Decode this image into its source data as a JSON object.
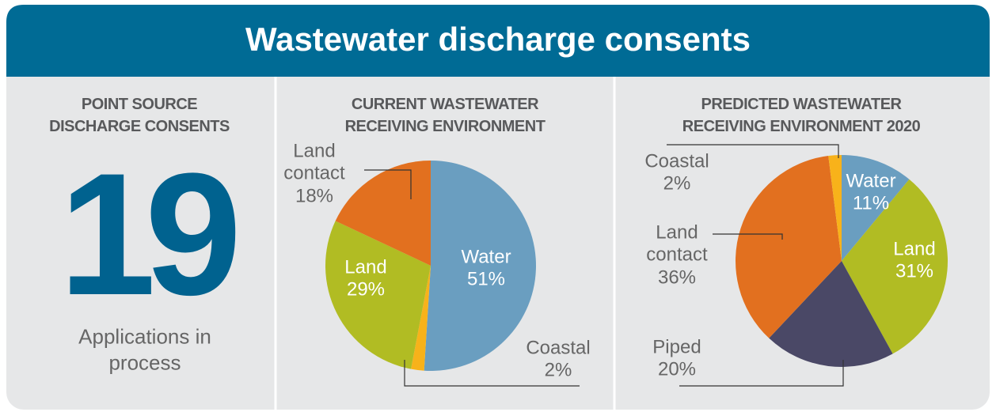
{
  "header": {
    "title": "Wastewater discharge consents"
  },
  "summary": {
    "title": [
      "POINT SOURCE",
      "DISCHARGE CONSENTS"
    ],
    "number": "19",
    "caption": "Applications in process"
  },
  "chart_data": [
    {
      "type": "pie",
      "title": [
        "CURRENT WASTEWATER",
        "RECEIVING ENVIRONMENT"
      ],
      "categories": [
        "Water",
        "Coastal",
        "Land",
        "Land contact"
      ],
      "values": [
        51,
        2,
        29,
        18
      ],
      "value_labels": [
        "51%",
        "2%",
        "29%",
        "18%"
      ],
      "colors": [
        "#6a9ec0",
        "#f8b21a",
        "#b1bc23",
        "#e2701f"
      ]
    },
    {
      "type": "pie",
      "title": [
        "PREDICTED WASTEWATER",
        "RECEIVING ENVIRONMENT 2020"
      ],
      "categories": [
        "Water",
        "Land",
        "Piped",
        "Land contact",
        "Coastal"
      ],
      "values": [
        11,
        31,
        20,
        36,
        2
      ],
      "value_labels": [
        "11%",
        "31%",
        "20%",
        "36%",
        "2%"
      ],
      "colors": [
        "#6a9ec0",
        "#b1bc23",
        "#4a4866",
        "#e2701f",
        "#f8b21a"
      ]
    }
  ]
}
